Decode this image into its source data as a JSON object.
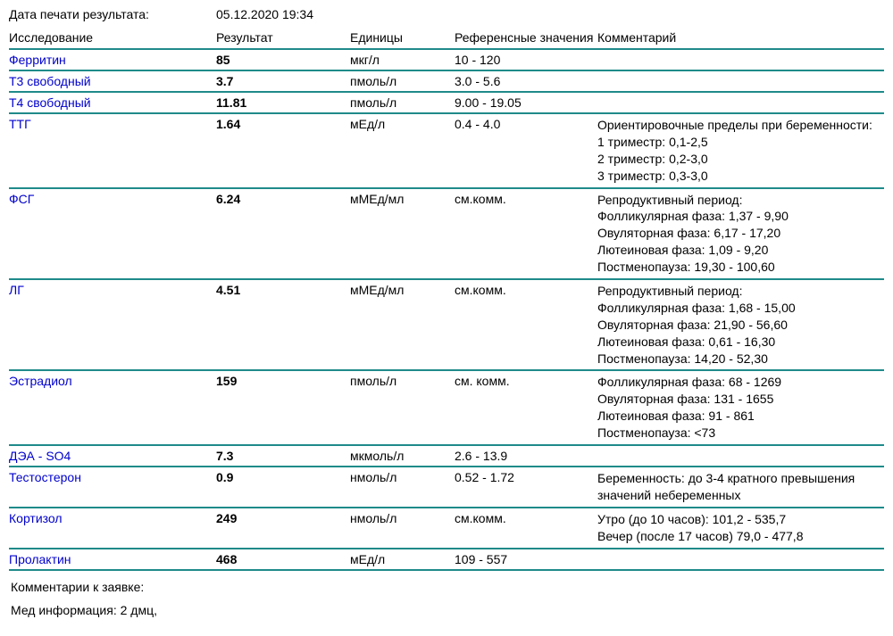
{
  "header": {
    "print_date_label": "Дата печати результата:",
    "print_date_value": "05.12.2020 19:34"
  },
  "columns": {
    "test": "Исследование",
    "result": "Результат",
    "units": "Единицы",
    "reference": "Референсные значения",
    "comment": "Комментарий"
  },
  "rows": [
    {
      "test": "Ферритин",
      "result": "85",
      "units": "мкг/л",
      "reference": "10 - 120",
      "comment": ""
    },
    {
      "test": "Т3 свободный",
      "result": "3.7",
      "units": "пмоль/л",
      "reference": "3.0 - 5.6",
      "comment": ""
    },
    {
      "test": "Т4 свободный",
      "result": "11.81",
      "units": "пмоль/л",
      "reference": "9.00 - 19.05",
      "comment": ""
    },
    {
      "test": "ТТГ",
      "result": "1.64",
      "units": "мЕд/л",
      "reference": "0.4 - 4.0",
      "comment": "Ориентировочные пределы при беременности:\n1 триместр: 0,1-2,5\n2 триместр: 0,2-3,0\n3 триместр: 0,3-3,0"
    },
    {
      "test": "ФСГ",
      "result": "6.24",
      "units": "мМЕд/мл",
      "reference": "см.комм.",
      "comment": "Репродуктивный период:\nФолликулярная фаза: 1,37 - 9,90\nОвуляторная фаза: 6,17 - 17,20\nЛютеиновая фаза: 1,09 - 9,20\nПостменопауза: 19,30 - 100,60"
    },
    {
      "test": "ЛГ",
      "result": "4.51",
      "units": "мМЕд/мл",
      "reference": "см.комм.",
      "comment": "Репродуктивный период:\nФолликулярная фаза: 1,68 - 15,00\nОвуляторная фаза: 21,90 - 56,60\nЛютеиновая фаза: 0,61 - 16,30\nПостменопауза: 14,20 - 52,30"
    },
    {
      "test": "Эстрадиол",
      "result": "159",
      "units": "пмоль/л",
      "reference": "см. комм.",
      "comment": "Фолликулярная фаза: 68 - 1269\nОвуляторная фаза: 131 - 1655\nЛютеиновая фаза: 91 - 861\nПостменопауза: <73"
    },
    {
      "test": "ДЭА - SO4",
      "result": "7.3",
      "units": "мкмоль/л",
      "reference": "2.6 - 13.9",
      "comment": ""
    },
    {
      "test": "Тестостерон",
      "result": "0.9",
      "units": "нмоль/л",
      "reference": "0.52 - 1.72",
      "comment": "Беременность: до 3-4 кратного превышения значений небеременных"
    },
    {
      "test": "Кортизол",
      "result": "249",
      "units": "нмоль/л",
      "reference": "см.комм.",
      "comment": "Утро (до 10 часов): 101,2 - 535,7\nВечер (после 17 часов) 79,0 - 477,8"
    },
    {
      "test": "Пролактин",
      "result": "468",
      "units": "мЕд/л",
      "reference": "109 - 557",
      "comment": ""
    }
  ],
  "footer": {
    "comments_label": "Комментарии к заявке:",
    "med_info": "Мед информация: 2 дмц,"
  },
  "style": {
    "border_color": "#1f8a8a",
    "test_name_color": "#0000cd"
  }
}
